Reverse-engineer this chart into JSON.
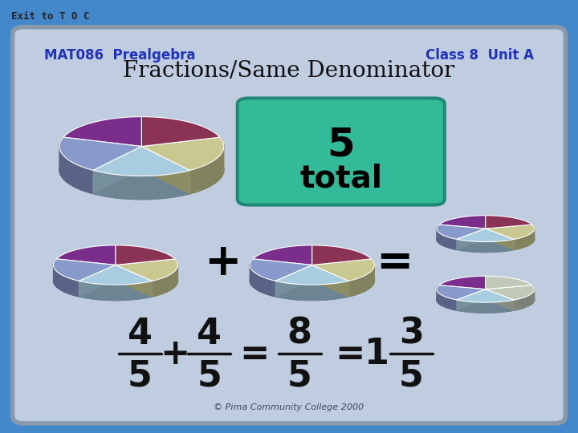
{
  "bg_color": "#4488cc",
  "slide_bg": "#c0cce0",
  "exit_text": "Exit to T O C",
  "exit_bg": "#f0a0a0",
  "exit_text_color": "#222222",
  "subtitle_left": "MAT086  Prealgebra",
  "subtitle_right": "Class 8  Unit A",
  "subtitle_color": "#2233bb",
  "title_text": "Fractions/Same Denominator",
  "title_color": "#111111",
  "callout_text": "5\ntotal",
  "callout_bg": "#33bb99",
  "callout_border": "#228877",
  "formula_color": "#111111",
  "copyright": "© Pima Community College 2000",
  "pie_colors": [
    "#7b2d8b",
    "#8899cc",
    "#a8cce0",
    "#c8c890",
    "#8b3355"
  ],
  "pie_colors_gray": [
    "#6688aa",
    "#8899cc",
    "#a8cce0",
    "#c8c890",
    "#8b3355"
  ],
  "title_fontsize": 20,
  "subtitle_fontsize": 12,
  "formula_fontsize": 32
}
